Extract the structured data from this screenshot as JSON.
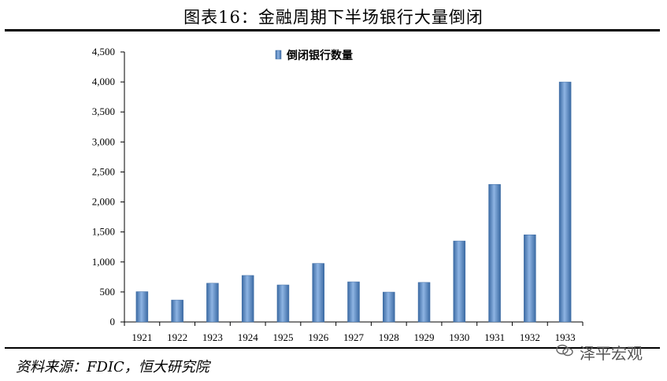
{
  "page": {
    "title": "图表16：金融周期下半场银行大量倒闭",
    "source": "资料来源：FDIC，恒大研究院",
    "watermark": "泽平宏观"
  },
  "chart_data": {
    "type": "bar",
    "title": "",
    "xlabel": "",
    "ylabel": "",
    "categories": [
      "1921",
      "1922",
      "1923",
      "1924",
      "1925",
      "1926",
      "1927",
      "1928",
      "1929",
      "1930",
      "1931",
      "1932",
      "1933"
    ],
    "series": [
      {
        "name": "倒闭银行数量",
        "values": [
          505,
          366,
          646,
          775,
          617,
          976,
          669,
          498,
          659,
          1350,
          2293,
          1453,
          4000
        ]
      }
    ],
    "ylim": [
      0,
      4500
    ],
    "yticks": [
      0,
      500,
      1000,
      1500,
      2000,
      2500,
      3000,
      3500,
      4000,
      4500
    ],
    "ytick_labels": [
      "0",
      "500",
      "1,000",
      "1,500",
      "2,000",
      "2,500",
      "3,000",
      "3,500",
      "4,000",
      "4,500"
    ],
    "grid": false,
    "legend": "top-center",
    "colors": {
      "bar": "#4f81bd",
      "bar_light": "#8eb4e3",
      "bar_dark": "#3b6aa3"
    }
  }
}
